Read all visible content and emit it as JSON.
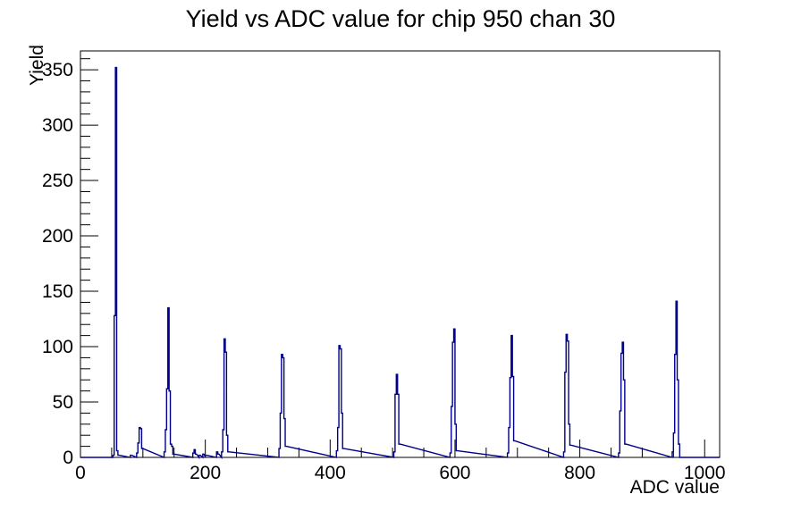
{
  "title": "Yield vs ADC value for chip 950 chan 30",
  "chart_data": {
    "type": "line",
    "subtype": "step-histogram",
    "title": "Yield vs ADC value for chip 950 chan 30",
    "xlabel": "ADC value",
    "ylabel": "Yield",
    "xlim": [
      0,
      1024
    ],
    "ylim": [
      0,
      367
    ],
    "grid": false,
    "legend": "none",
    "line_color": "#00008b",
    "frame_color": "#000000",
    "background_color": "#ffffff",
    "x_major_ticks": [
      0,
      200,
      400,
      600,
      800,
      1000
    ],
    "x_minor_step": 50,
    "y_major_ticks": [
      0,
      50,
      100,
      150,
      200,
      250,
      300,
      350
    ],
    "y_minor_step": 10,
    "bin_width": 2,
    "bins": [
      [
        52,
        2
      ],
      [
        54,
        128
      ],
      [
        56,
        352
      ],
      [
        58,
        6
      ],
      [
        60,
        2
      ],
      [
        80,
        2
      ],
      [
        90,
        4
      ],
      [
        92,
        13
      ],
      [
        94,
        27
      ],
      [
        96,
        26
      ],
      [
        98,
        8
      ],
      [
        134,
        5
      ],
      [
        136,
        25
      ],
      [
        138,
        62
      ],
      [
        140,
        135
      ],
      [
        142,
        60
      ],
      [
        144,
        12
      ],
      [
        146,
        10
      ],
      [
        148,
        3
      ],
      [
        180,
        4
      ],
      [
        182,
        7
      ],
      [
        184,
        3
      ],
      [
        190,
        2
      ],
      [
        196,
        3
      ],
      [
        200,
        2
      ],
      [
        218,
        5
      ],
      [
        220,
        3
      ],
      [
        226,
        5
      ],
      [
        228,
        25
      ],
      [
        230,
        107
      ],
      [
        232,
        95
      ],
      [
        234,
        20
      ],
      [
        236,
        5
      ],
      [
        318,
        8
      ],
      [
        320,
        40
      ],
      [
        322,
        93
      ],
      [
        324,
        90
      ],
      [
        326,
        35
      ],
      [
        328,
        10
      ],
      [
        410,
        6
      ],
      [
        412,
        27
      ],
      [
        414,
        101
      ],
      [
        416,
        98
      ],
      [
        418,
        40
      ],
      [
        420,
        8
      ],
      [
        502,
        5
      ],
      [
        504,
        57
      ],
      [
        506,
        75
      ],
      [
        508,
        57
      ],
      [
        510,
        12
      ],
      [
        592,
        4
      ],
      [
        594,
        46
      ],
      [
        596,
        104
      ],
      [
        598,
        116
      ],
      [
        600,
        30
      ],
      [
        602,
        6
      ],
      [
        684,
        4
      ],
      [
        686,
        27
      ],
      [
        688,
        72
      ],
      [
        690,
        110
      ],
      [
        692,
        73
      ],
      [
        694,
        15
      ],
      [
        774,
        5
      ],
      [
        776,
        77
      ],
      [
        778,
        111
      ],
      [
        780,
        105
      ],
      [
        782,
        30
      ],
      [
        784,
        11
      ],
      [
        862,
        4
      ],
      [
        864,
        42
      ],
      [
        866,
        94
      ],
      [
        868,
        104
      ],
      [
        870,
        70
      ],
      [
        872,
        12
      ],
      [
        948,
        5
      ],
      [
        950,
        22
      ],
      [
        952,
        93
      ],
      [
        954,
        141
      ],
      [
        956,
        70
      ],
      [
        958,
        12
      ]
    ],
    "peak_summary": [
      {
        "adc": 56,
        "yield": 352
      },
      {
        "adc": 94,
        "yield": 27
      },
      {
        "adc": 140,
        "yield": 135
      },
      {
        "adc": 230,
        "yield": 107
      },
      {
        "adc": 322,
        "yield": 93
      },
      {
        "adc": 414,
        "yield": 101
      },
      {
        "adc": 506,
        "yield": 75
      },
      {
        "adc": 598,
        "yield": 116
      },
      {
        "adc": 690,
        "yield": 110
      },
      {
        "adc": 778,
        "yield": 111
      },
      {
        "adc": 868,
        "yield": 104
      },
      {
        "adc": 954,
        "yield": 141
      }
    ],
    "layout": {
      "frame_left": 90,
      "frame_right": 805,
      "frame_top": 57,
      "frame_bottom": 512,
      "major_tick_len": 20,
      "minor_tick_len": 11
    }
  }
}
